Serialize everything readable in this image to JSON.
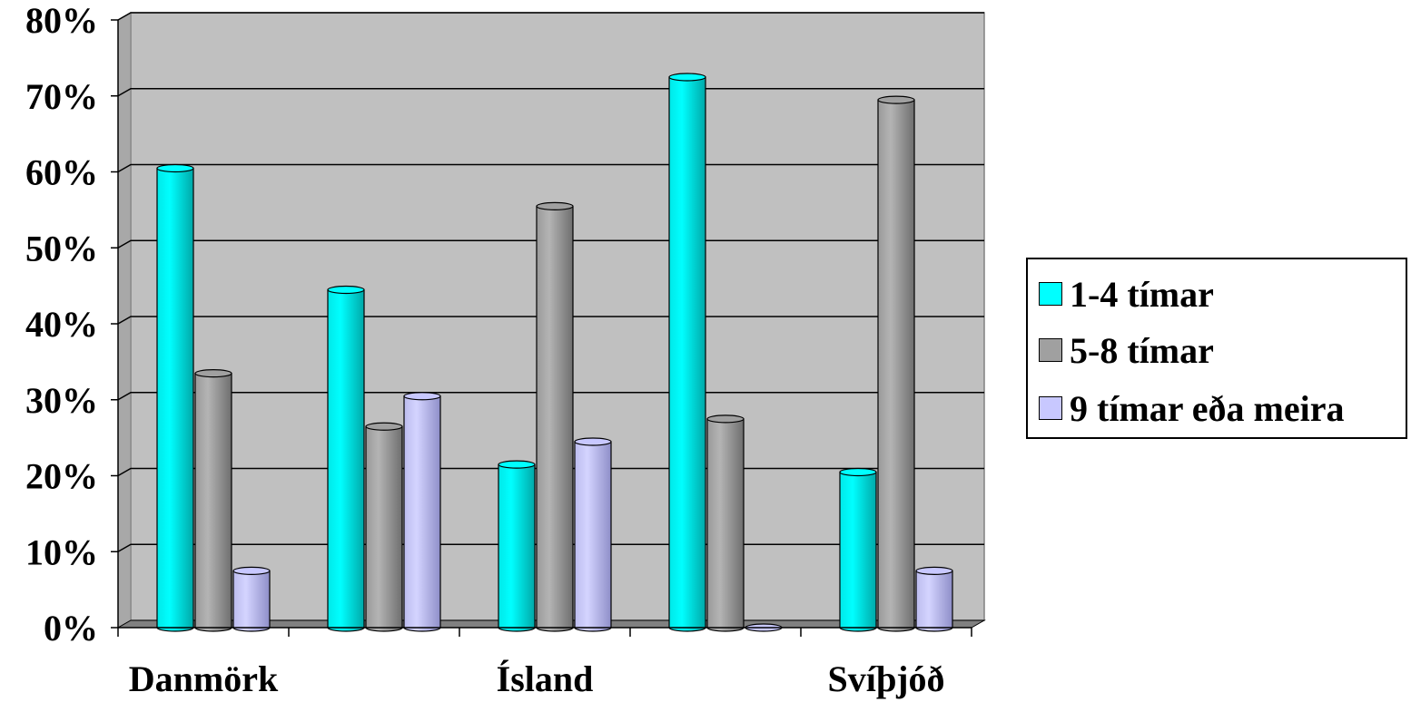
{
  "chart_data": {
    "type": "bar",
    "title": "",
    "xlabel": "",
    "ylabel": "",
    "categories": [
      "Danmörk",
      "",
      "Ísland",
      "",
      "Svíþjóð"
    ],
    "y_ticks": [
      "0%",
      "10%",
      "20%",
      "30%",
      "40%",
      "50%",
      "60%",
      "70%",
      "80%"
    ],
    "ylim": [
      0,
      80
    ],
    "grid": true,
    "legend_position": "right",
    "series": [
      {
        "name": "1-4 tímar",
        "color": "#00FFFF",
        "values": [
          60,
          44,
          21,
          72,
          20
        ]
      },
      {
        "name": "5-8 tímar",
        "color": "#A0A0A0",
        "values": [
          33,
          26,
          55,
          27,
          69
        ]
      },
      {
        "name": "9 tímar eða meira",
        "color": "#C8C8FF",
        "values": [
          7,
          30,
          24,
          0,
          7
        ]
      }
    ]
  }
}
